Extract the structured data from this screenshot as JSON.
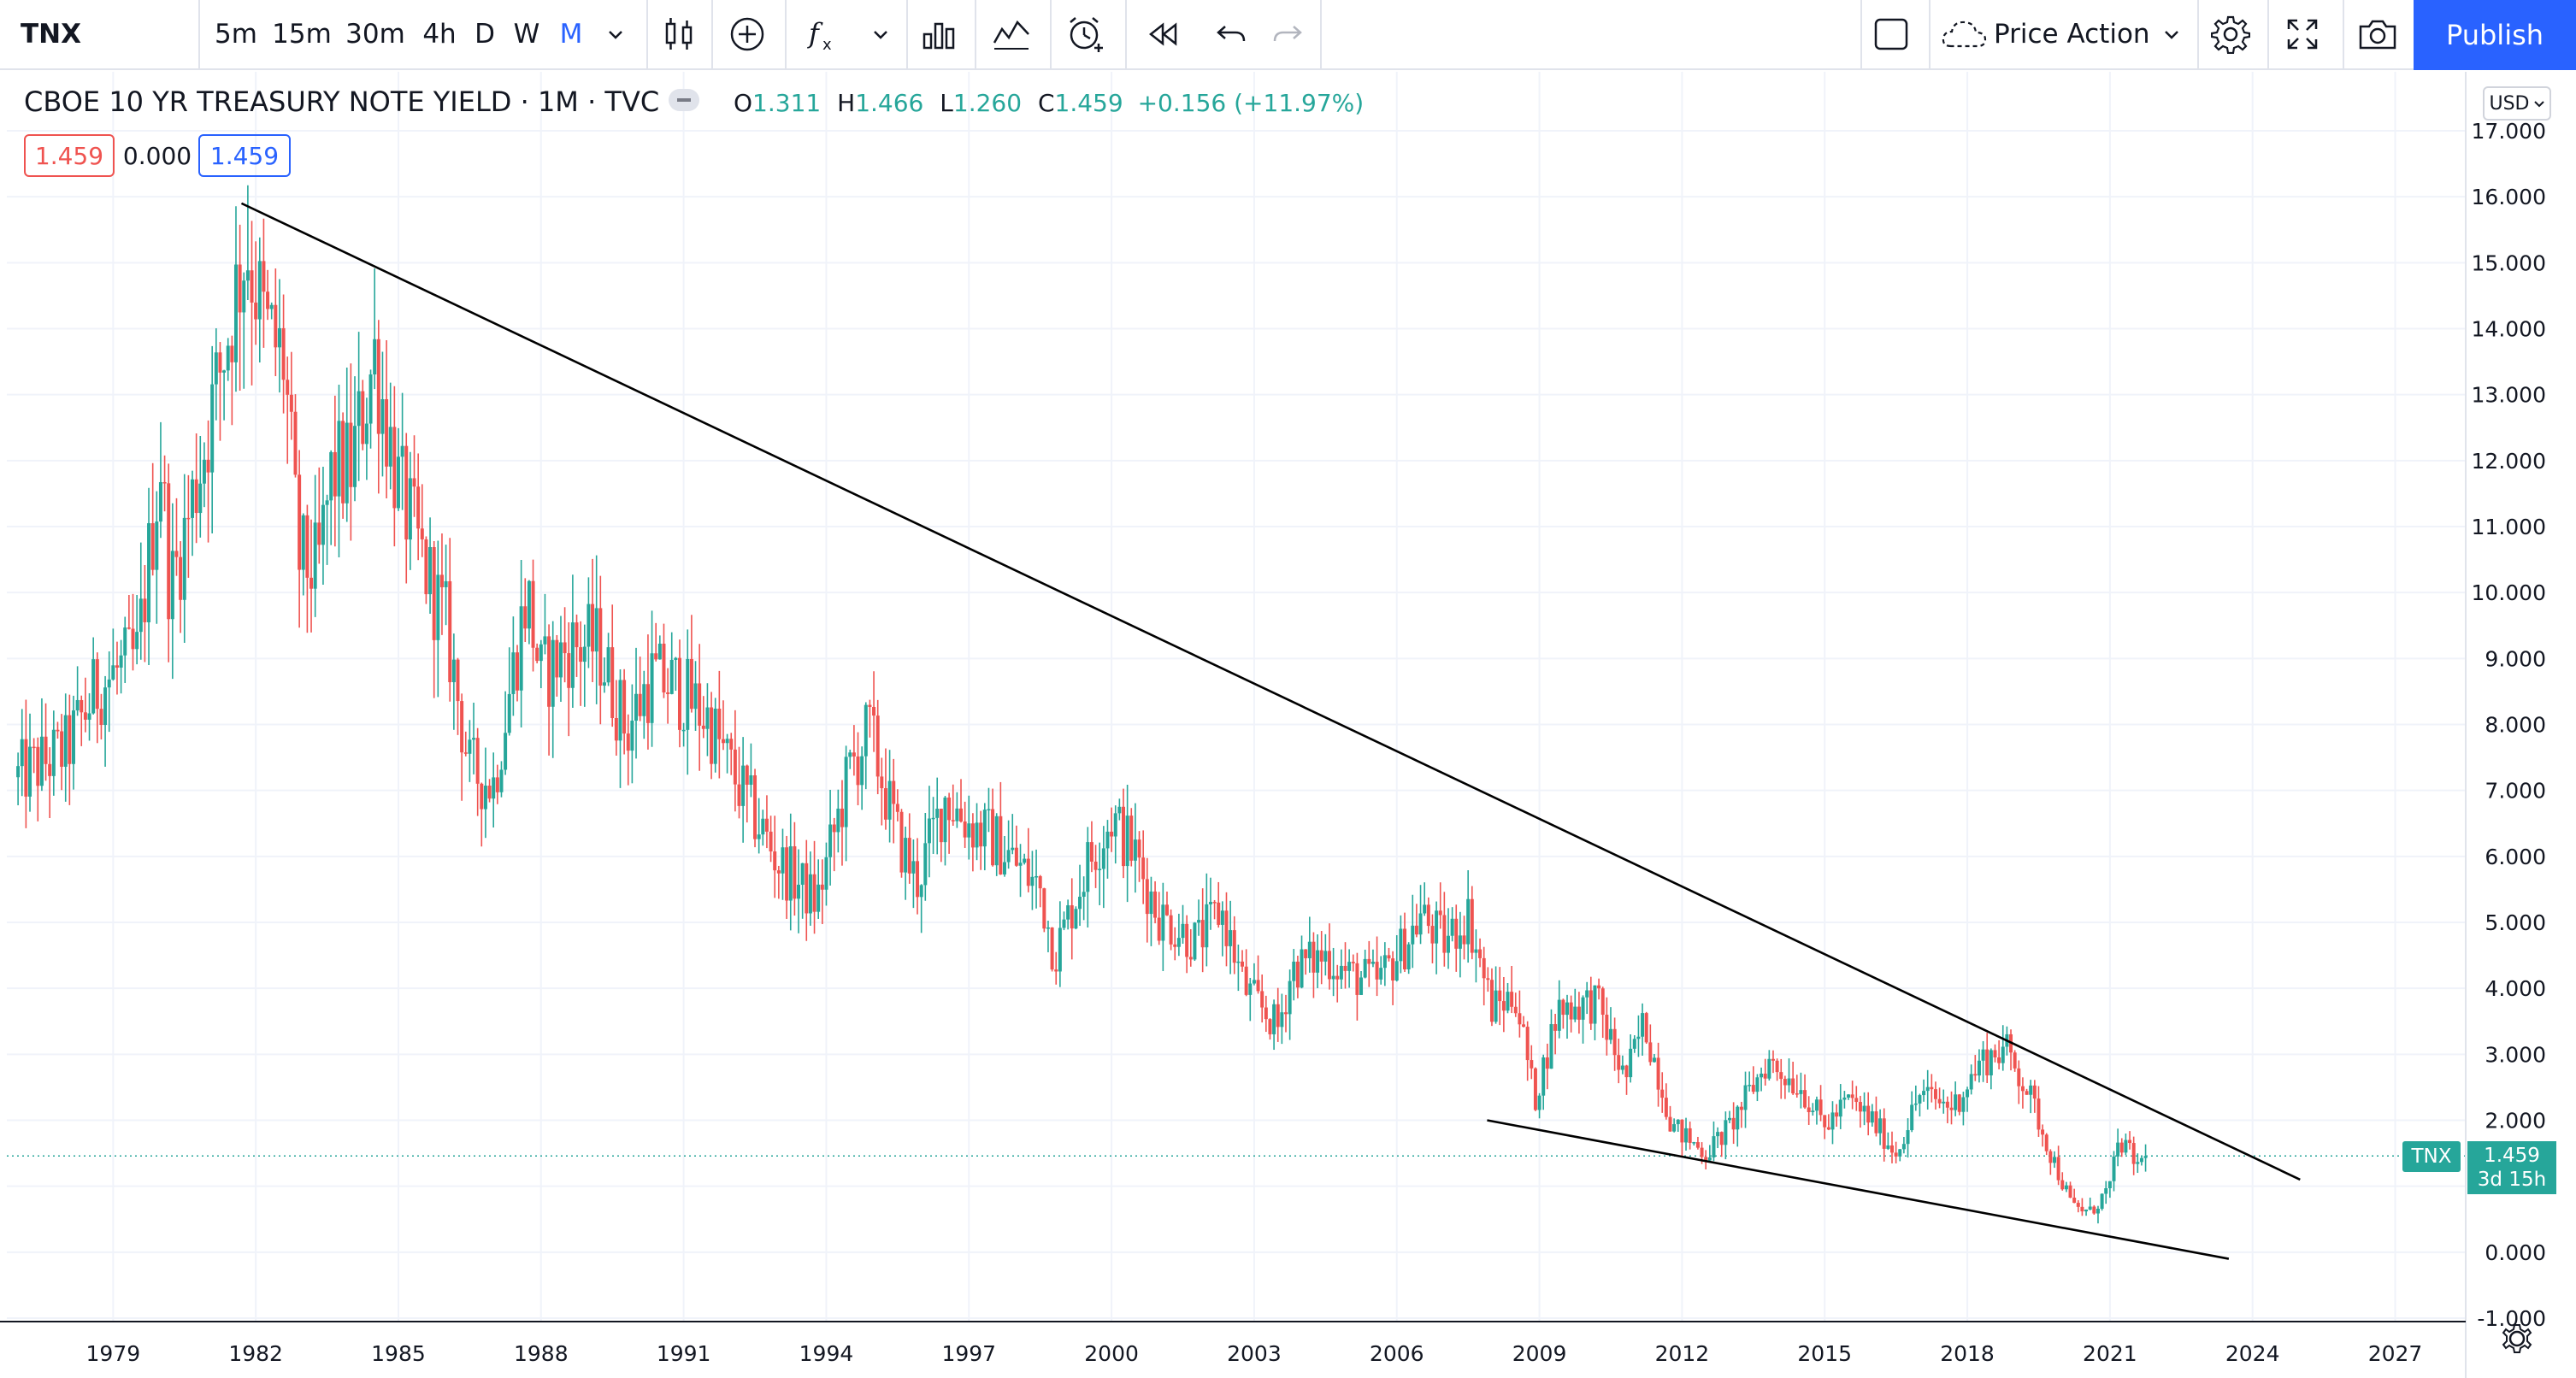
{
  "toolbar": {
    "symbol": "TNX",
    "intervals": [
      "5m",
      "15m",
      "30m",
      "4h",
      "D",
      "W",
      "M"
    ],
    "active_interval": "M",
    "layout_name": "Price Action",
    "publish_label": "Publish",
    "icons": [
      "chevron-down-icon",
      "candles-icon",
      "plus-circle-icon",
      "fx-icon",
      "chevron-down-icon",
      "bars-icon",
      "templates-icon",
      "alarm-icon",
      "replay-icon",
      "undo-icon",
      "redo-icon",
      "square-icon",
      "cloud-icon",
      "chevron-down-icon",
      "gear-icon",
      "fullscreen-icon",
      "camera-icon"
    ]
  },
  "legend": {
    "title": "CBOE 10 YR TREASURY NOTE YIELD · 1M · TVC",
    "o_label": "O",
    "o": "1.311",
    "h_label": "H",
    "h": "1.466",
    "l_label": "L",
    "l": "1.260",
    "c_label": "C",
    "c": "1.459",
    "change": "+0.156 (+11.97%)",
    "bid": "1.459",
    "spread": "0.000",
    "ask": "1.459"
  },
  "currency": "USD",
  "last_price": {
    "symbol": "TNX",
    "value": "1.459",
    "countdown": "3d 15h"
  },
  "colors": {
    "up": "#26a69a",
    "down": "#ef5350",
    "accent": "#2962ff",
    "line": "#000000"
  },
  "chart_data": {
    "type": "candlestick",
    "title": "CBOE 10 YR TREASURY NOTE YIELD",
    "interval": "1M",
    "source": "TVC",
    "ylim": [
      -1.0,
      17.0
    ],
    "yticks": [
      "17.000",
      "16.000",
      "15.000",
      "14.000",
      "13.000",
      "12.000",
      "11.000",
      "10.000",
      "9.000",
      "8.000",
      "7.000",
      "6.000",
      "5.000",
      "4.000",
      "3.000",
      "2.000",
      "1.000",
      "0.000",
      "-1.000"
    ],
    "xlim": [
      1976.8,
      2027.8
    ],
    "xticks": [
      "1979",
      "1982",
      "1985",
      "1988",
      "1991",
      "1994",
      "1997",
      "2000",
      "2003",
      "2006",
      "2009",
      "2012",
      "2015",
      "2018",
      "2021",
      "2024",
      "2027"
    ],
    "grid": true,
    "series": [
      {
        "name": "TNX",
        "anchors": [
          [
            1977.0,
            7.2
          ],
          [
            1978.0,
            7.6
          ],
          [
            1978.7,
            8.6
          ],
          [
            1979.5,
            9.0
          ],
          [
            1980.0,
            12.0
          ],
          [
            1980.2,
            10.0
          ],
          [
            1980.6,
            11.2
          ],
          [
            1981.0,
            12.5
          ],
          [
            1981.8,
            15.3
          ],
          [
            1982.2,
            14.0
          ],
          [
            1982.6,
            13.5
          ],
          [
            1982.9,
            10.5
          ],
          [
            1983.3,
            10.3
          ],
          [
            1983.6,
            11.8
          ],
          [
            1984.0,
            11.9
          ],
          [
            1984.5,
            13.6
          ],
          [
            1985.0,
            11.6
          ],
          [
            1985.5,
            10.5
          ],
          [
            1986.0,
            9.5
          ],
          [
            1986.5,
            7.3
          ],
          [
            1987.0,
            7.1
          ],
          [
            1987.7,
            10.0
          ],
          [
            1988.0,
            8.7
          ],
          [
            1988.6,
            9.2
          ],
          [
            1989.2,
            9.2
          ],
          [
            1989.8,
            7.9
          ],
          [
            1990.3,
            8.7
          ],
          [
            1990.8,
            8.6
          ],
          [
            1991.5,
            8.1
          ],
          [
            1992.0,
            7.3
          ],
          [
            1993.0,
            5.9
          ],
          [
            1993.8,
            5.3
          ],
          [
            1994.5,
            7.3
          ],
          [
            1994.9,
            7.9
          ],
          [
            1995.5,
            6.3
          ],
          [
            1995.9,
            5.6
          ],
          [
            1996.5,
            6.9
          ],
          [
            1997.0,
            6.5
          ],
          [
            1997.6,
            6.2
          ],
          [
            1998.5,
            5.5
          ],
          [
            1998.8,
            4.5
          ],
          [
            1999.5,
            5.9
          ],
          [
            2000.0,
            6.6
          ],
          [
            2000.5,
            6.0
          ],
          [
            2001.0,
            5.1
          ],
          [
            2001.8,
            4.7
          ],
          [
            2002.3,
            5.2
          ],
          [
            2002.8,
            4.0
          ],
          [
            2003.5,
            3.4
          ],
          [
            2003.8,
            4.3
          ],
          [
            2004.5,
            4.5
          ],
          [
            2005.0,
            4.2
          ],
          [
            2005.6,
            4.1
          ],
          [
            2006.2,
            4.7
          ],
          [
            2006.5,
            5.1
          ],
          [
            2007.0,
            4.7
          ],
          [
            2007.5,
            5.1
          ],
          [
            2008.0,
            3.7
          ],
          [
            2008.5,
            3.9
          ],
          [
            2008.9,
            2.3
          ],
          [
            2009.4,
            3.7
          ],
          [
            2010.2,
            3.8
          ],
          [
            2010.8,
            2.6
          ],
          [
            2011.2,
            3.5
          ],
          [
            2011.8,
            1.9
          ],
          [
            2012.5,
            1.5
          ],
          [
            2013.0,
            1.9
          ],
          [
            2013.8,
            2.9
          ],
          [
            2014.5,
            2.5
          ],
          [
            2015.0,
            1.9
          ],
          [
            2015.5,
            2.3
          ],
          [
            2016.0,
            2.0
          ],
          [
            2016.5,
            1.5
          ],
          [
            2017.0,
            2.4
          ],
          [
            2017.7,
            2.2
          ],
          [
            2018.3,
            2.9
          ],
          [
            2018.8,
            3.1
          ],
          [
            2019.3,
            2.4
          ],
          [
            2019.7,
            1.6
          ],
          [
            2020.2,
            0.7
          ],
          [
            2020.6,
            0.6
          ],
          [
            2021.0,
            1.0
          ],
          [
            2021.2,
            1.7
          ],
          [
            2021.6,
            1.3
          ],
          [
            2021.75,
            1.46
          ]
        ]
      }
    ],
    "trendlines": [
      {
        "from": [
          1981.7,
          15.9
        ],
        "to": [
          2025.0,
          1.1
        ]
      },
      {
        "from": [
          2007.9,
          2.0
        ],
        "to": [
          2023.5,
          -0.1
        ]
      }
    ],
    "last_value": 1.459
  }
}
